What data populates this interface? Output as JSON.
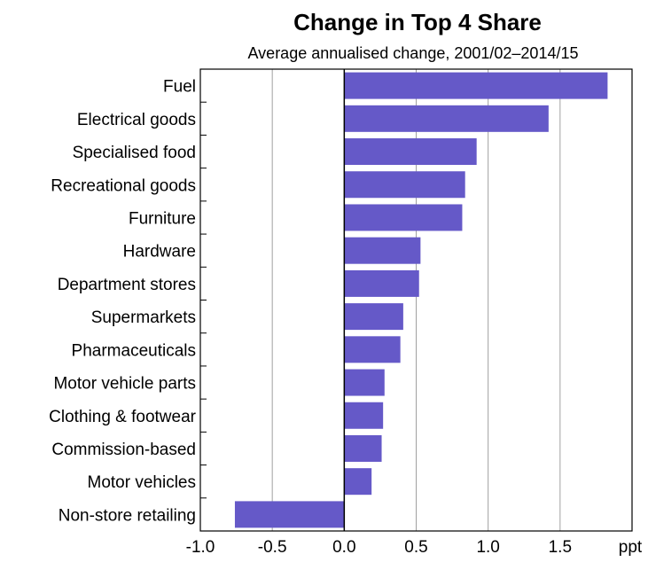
{
  "chart_data": {
    "type": "bar",
    "orientation": "horizontal",
    "title": "Change in Top 4 Share",
    "subtitle": "Average annualised change, 2001/02–2014/15",
    "categories": [
      "Fuel",
      "Electrical goods",
      "Specialised food",
      "Recreational goods",
      "Furniture",
      "Hardware",
      "Department stores",
      "Supermarkets",
      "Pharmaceuticals",
      "Motor vehicle parts",
      "Clothing & footwear",
      "Commission-based",
      "Motor vehicles",
      "Non-store retailing"
    ],
    "values": [
      1.83,
      1.42,
      0.92,
      0.84,
      0.82,
      0.53,
      0.52,
      0.41,
      0.39,
      0.28,
      0.27,
      0.26,
      0.19,
      -0.76
    ],
    "xlim": [
      -1.0,
      2.0
    ],
    "xticks": [
      "-1.0",
      "-0.5",
      "0.0",
      "0.5",
      "1.0",
      "1.5"
    ],
    "xticks_values": [
      -1.0,
      -0.5,
      0.0,
      0.5,
      1.0,
      1.5
    ],
    "xunit": "ppt",
    "grid": "vertical",
    "bar_color": "#6559c8"
  }
}
